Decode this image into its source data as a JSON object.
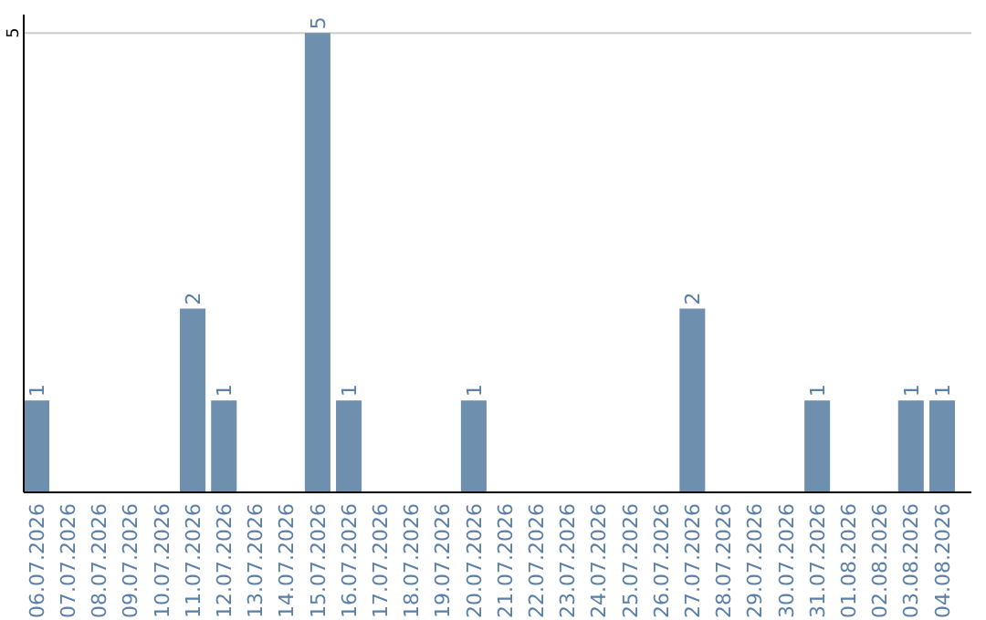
{
  "chart_data": {
    "type": "bar",
    "categories": [
      "06.07.2026",
      "07.07.2026",
      "08.07.2026",
      "09.07.2026",
      "10.07.2026",
      "11.07.2026",
      "12.07.2026",
      "13.07.2026",
      "14.07.2026",
      "15.07.2026",
      "16.07.2026",
      "17.07.2026",
      "18.07.2026",
      "19.07.2026",
      "20.07.2026",
      "21.07.2026",
      "22.07.2026",
      "23.07.2026",
      "24.07.2026",
      "25.07.2026",
      "26.07.2026",
      "27.07.2026",
      "28.07.2026",
      "29.07.2026",
      "30.07.2026",
      "31.07.2026",
      "01.08.2026",
      "02.08.2026",
      "03.08.2026",
      "04.08.2026"
    ],
    "values": [
      1,
      0,
      0,
      0,
      0,
      2,
      1,
      0,
      0,
      5,
      1,
      0,
      0,
      0,
      1,
      0,
      0,
      0,
      0,
      0,
      0,
      2,
      0,
      0,
      0,
      1,
      0,
      0,
      1,
      1
    ],
    "value_labels": [
      "1",
      null,
      null,
      null,
      null,
      "2",
      "1",
      null,
      null,
      "5",
      "1",
      null,
      null,
      null,
      "1",
      null,
      null,
      null,
      null,
      null,
      null,
      "2",
      null,
      null,
      null,
      "1",
      null,
      null,
      "1",
      "1"
    ],
    "color": "#6e8fae",
    "ylim": [
      0,
      5.2
    ],
    "yticks": [
      5
    ],
    "grid": "y"
  }
}
